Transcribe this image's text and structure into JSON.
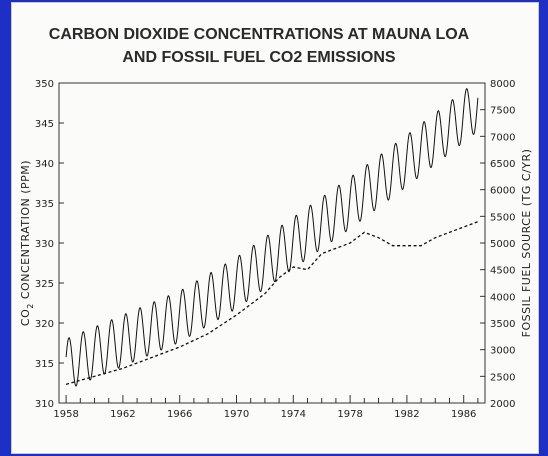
{
  "chart_data": {
    "type": "line",
    "title_lines": [
      "CARBON DIOXIDE CONCENTRATIONS AT MAUNA LOA",
      "AND FOSSIL FUEL CO2 EMISSIONS"
    ],
    "ylabel": "CO2 CONCENTRATION (PPM)",
    "ylabel_parts": [
      "CO",
      "2",
      " CONCENTRATION (PPM)"
    ],
    "y2label": "FOSSIL FUEL SOURCE (TG C/YR)",
    "xlim": [
      1957.5,
      1987.5
    ],
    "ylim": [
      310,
      350
    ],
    "y2lim": [
      2000,
      8000
    ],
    "x_ticks": [
      1958,
      1962,
      1966,
      1970,
      1974,
      1978,
      1982,
      1986
    ],
    "y_ticks": [
      310,
      315,
      320,
      325,
      330,
      335,
      340,
      345,
      350
    ],
    "y2_ticks": [
      2000,
      2500,
      3000,
      3500,
      4000,
      4500,
      5000,
      5500,
      6000,
      6500,
      7000,
      7500,
      8000
    ],
    "grid": false,
    "series": [
      {
        "axis": "left",
        "style": "solid",
        "trend": {
          "x": [
            1958,
            1962,
            1966,
            1970,
            1974,
            1978,
            1982,
            1986,
            1987
          ],
          "y": [
            314.8,
            317.8,
            320.8,
            325.0,
            330.0,
            335.0,
            340.3,
            345.8,
            347.2
          ]
        },
        "seasonal_amplitude": 3.2
      },
      {
        "axis": "right",
        "style": "dashed",
        "x": [
          1958,
          1960,
          1962,
          1964,
          1966,
          1968,
          1970,
          1972,
          1973,
          1974,
          1975,
          1976,
          1977,
          1978,
          1979,
          1980,
          1981,
          1982,
          1983,
          1984,
          1985,
          1986,
          1987
        ],
        "y": [
          2350,
          2500,
          2650,
          2850,
          3050,
          3300,
          3650,
          4050,
          4350,
          4550,
          4500,
          4800,
          4900,
          5000,
          5200,
          5100,
          4950,
          4950,
          4950,
          5100,
          5200,
          5300,
          5400
        ]
      }
    ]
  }
}
